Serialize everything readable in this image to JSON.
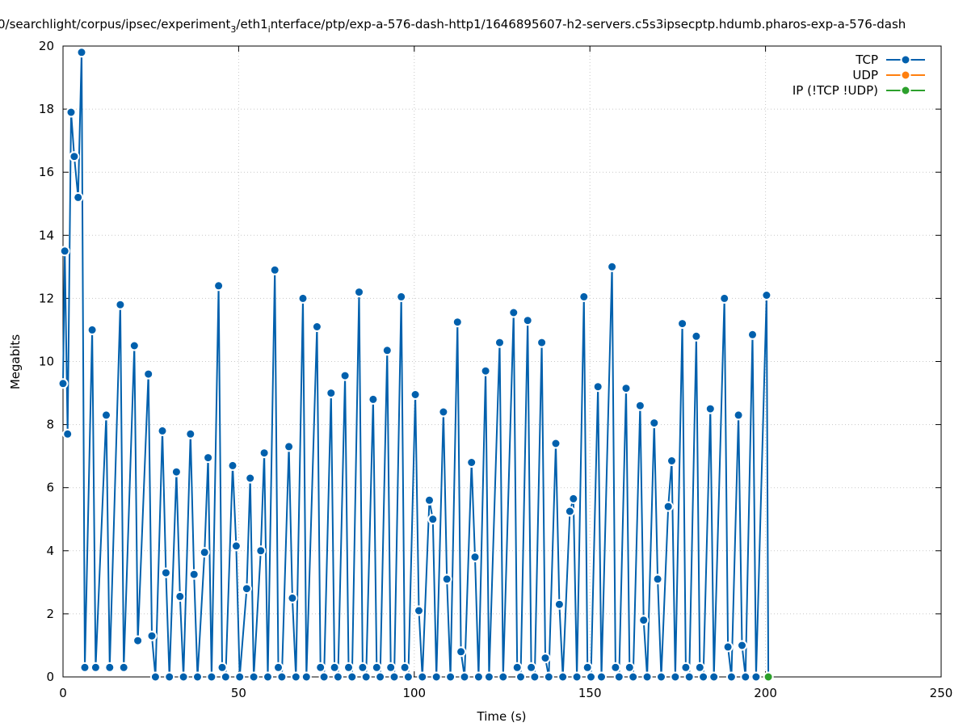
{
  "chart_data": {
    "type": "line",
    "title": "0/searchlight/corpus/ipsec/experiment",
    "title_sub": "3",
    "title_mid": "/eth1",
    "title_sub2": "i",
    "title_end": "nterface/ptp/exp-a-576-dash-http1/1646895607-h2-servers.c5s3ipsecptp.hdumb.pharos-exp-a-576-dash",
    "xlabel": "Time (s)",
    "ylabel": "Megabits",
    "xlim": [
      0,
      250
    ],
    "ylim": [
      0,
      20
    ],
    "xticks": [
      0,
      50,
      100,
      150,
      200,
      250
    ],
    "yticks": [
      0,
      2,
      4,
      6,
      8,
      10,
      12,
      14,
      16,
      18,
      20
    ],
    "grid": true,
    "legend_position": "top-right",
    "series": [
      {
        "name": "TCP",
        "color": "#0060ad",
        "points": [
          [
            0,
            9.3
          ],
          [
            0.5,
            13.5
          ],
          [
            1.3,
            7.7
          ],
          [
            2.3,
            17.9
          ],
          [
            3.2,
            16.5
          ],
          [
            4.3,
            15.2
          ],
          [
            5.3,
            19.8
          ],
          [
            6.2,
            0.3
          ],
          [
            8.3,
            11.0
          ],
          [
            9.3,
            0.3
          ],
          [
            12.3,
            8.3
          ],
          [
            13.3,
            0.3
          ],
          [
            16.3,
            11.8
          ],
          [
            17.3,
            0.3
          ],
          [
            20.3,
            10.5
          ],
          [
            21.3,
            1.15
          ],
          [
            24.3,
            9.6
          ],
          [
            25.3,
            1.3
          ],
          [
            26.3,
            0
          ],
          [
            28.3,
            7.8
          ],
          [
            29.3,
            3.3
          ],
          [
            30.3,
            0
          ],
          [
            32.3,
            6.5
          ],
          [
            33.3,
            2.55
          ],
          [
            34.3,
            0
          ],
          [
            36.3,
            7.7
          ],
          [
            37.3,
            3.25
          ],
          [
            38.3,
            0
          ],
          [
            40.3,
            3.95
          ],
          [
            41.3,
            6.95
          ],
          [
            42.3,
            0
          ],
          [
            44.3,
            12.4
          ],
          [
            45.3,
            0.3
          ],
          [
            46.3,
            0
          ],
          [
            48.3,
            6.7
          ],
          [
            49.3,
            4.15
          ],
          [
            50.3,
            0
          ],
          [
            52.3,
            2.8
          ],
          [
            53.3,
            6.3
          ],
          [
            54.3,
            0
          ],
          [
            56.3,
            4.0
          ],
          [
            57.3,
            7.1
          ],
          [
            58.3,
            0
          ],
          [
            60.3,
            12.9
          ],
          [
            61.3,
            0.3
          ],
          [
            62.3,
            0
          ],
          [
            64.3,
            7.3
          ],
          [
            65.3,
            2.5
          ],
          [
            66.3,
            0
          ],
          [
            68.3,
            12.0
          ],
          [
            69.3,
            0
          ],
          [
            72.3,
            11.1
          ],
          [
            73.3,
            0.3
          ],
          [
            74.3,
            0
          ],
          [
            76.3,
            9.0
          ],
          [
            77.3,
            0.3
          ],
          [
            78.3,
            0
          ],
          [
            80.3,
            9.55
          ],
          [
            81.3,
            0.3
          ],
          [
            82.3,
            0
          ],
          [
            84.3,
            12.2
          ],
          [
            85.3,
            0.3
          ],
          [
            86.3,
            0
          ],
          [
            88.3,
            8.8
          ],
          [
            89.3,
            0.3
          ],
          [
            90.3,
            0
          ],
          [
            92.3,
            10.35
          ],
          [
            93.3,
            0.3
          ],
          [
            94.3,
            0
          ],
          [
            96.3,
            12.05
          ],
          [
            97.3,
            0.3
          ],
          [
            98.3,
            0
          ],
          [
            100.3,
            8.95
          ],
          [
            101.3,
            2.1
          ],
          [
            102.3,
            0
          ],
          [
            104.3,
            5.6
          ],
          [
            105.3,
            5.0
          ],
          [
            106.3,
            0
          ],
          [
            108.3,
            8.4
          ],
          [
            109.3,
            3.1
          ],
          [
            110.3,
            0
          ],
          [
            112.3,
            11.25
          ],
          [
            113.3,
            0.8
          ],
          [
            114.3,
            0
          ],
          [
            116.3,
            6.8
          ],
          [
            117.3,
            3.8
          ],
          [
            118.3,
            0
          ],
          [
            120.3,
            9.7
          ],
          [
            121.3,
            0
          ],
          [
            124.3,
            10.6
          ],
          [
            125.3,
            0
          ],
          [
            128.3,
            11.55
          ],
          [
            129.3,
            0.3
          ],
          [
            130.3,
            0
          ],
          [
            132.3,
            11.3
          ],
          [
            133.3,
            0.3
          ],
          [
            134.3,
            0
          ],
          [
            136.3,
            10.6
          ],
          [
            137.3,
            0.6
          ],
          [
            138.3,
            0
          ],
          [
            140.3,
            7.4
          ],
          [
            141.3,
            2.3
          ],
          [
            142.3,
            0
          ],
          [
            144.3,
            5.25
          ],
          [
            145.3,
            5.65
          ],
          [
            146.3,
            0
          ],
          [
            148.3,
            12.05
          ],
          [
            149.3,
            0.3
          ],
          [
            150.3,
            0
          ],
          [
            152.3,
            9.2
          ],
          [
            153.3,
            0
          ],
          [
            156.3,
            13.0
          ],
          [
            157.3,
            0.3
          ],
          [
            158.3,
            0
          ],
          [
            160.3,
            9.15
          ],
          [
            161.3,
            0.3
          ],
          [
            162.3,
            0
          ],
          [
            164.3,
            8.6
          ],
          [
            165.3,
            1.8
          ],
          [
            166.3,
            0
          ],
          [
            168.3,
            8.05
          ],
          [
            169.3,
            3.1
          ],
          [
            170.3,
            0
          ],
          [
            172.3,
            5.4
          ],
          [
            173.3,
            6.85
          ],
          [
            174.3,
            0
          ],
          [
            176.3,
            11.2
          ],
          [
            177.3,
            0.3
          ],
          [
            178.3,
            0
          ],
          [
            180.3,
            10.8
          ],
          [
            181.3,
            0.3
          ],
          [
            182.3,
            0
          ],
          [
            184.3,
            8.5
          ],
          [
            185.3,
            0
          ],
          [
            188.3,
            12.0
          ],
          [
            189.3,
            0.95
          ],
          [
            190.3,
            0
          ],
          [
            192.3,
            8.3
          ],
          [
            193.3,
            1.0
          ],
          [
            194.3,
            0
          ],
          [
            196.3,
            10.85
          ],
          [
            197.3,
            0
          ],
          [
            200.3,
            12.1
          ],
          [
            200.8,
            0
          ]
        ]
      },
      {
        "name": "UDP",
        "color": "#ff7f0e",
        "points": []
      },
      {
        "name": "IP (!TCP  !UDP)",
        "color": "#2ca02c",
        "points": [
          [
            200.8,
            0
          ]
        ]
      }
    ]
  }
}
